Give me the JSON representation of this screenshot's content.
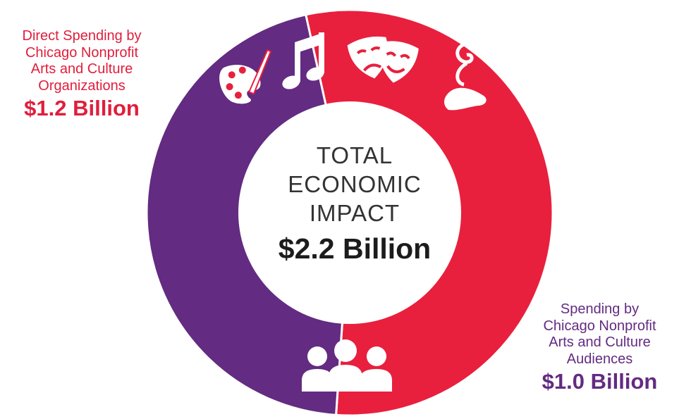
{
  "chart_data": {
    "type": "pie",
    "variant": "donut",
    "title": "TOTAL\nECONOMIC\nIMPACT",
    "total_label": "$2.2 Billion",
    "series": [
      {
        "name": "Direct Spending by Chicago Nonprofit Arts and Culture Organizations",
        "value": 1.2,
        "value_label": "$1.2 Billion",
        "color": "#e8203d",
        "icons": [
          "palette-icon",
          "music-note-icon",
          "theater-masks-icon",
          "dance-shoe-icon"
        ]
      },
      {
        "name": "Spending by Chicago Nonprofit Arts and Culture Audiences",
        "value": 1.0,
        "value_label": "$1.0 Billion",
        "color": "#632b81",
        "icons": [
          "audience-icon"
        ]
      }
    ]
  },
  "callouts": {
    "top": {
      "desc": "Direct Spending by\nChicago Nonprofit\nArts and Culture\nOrganizations",
      "amount": "$1.2 Billion"
    },
    "bottom": {
      "desc": "Spending by\nChicago Nonprofit\nArts and Culture\nAudiences",
      "amount": "$1.0 Billion"
    }
  },
  "colors": {
    "label_red": "#e01e3c",
    "label_purple": "#632b81",
    "center_text": "#333333"
  }
}
